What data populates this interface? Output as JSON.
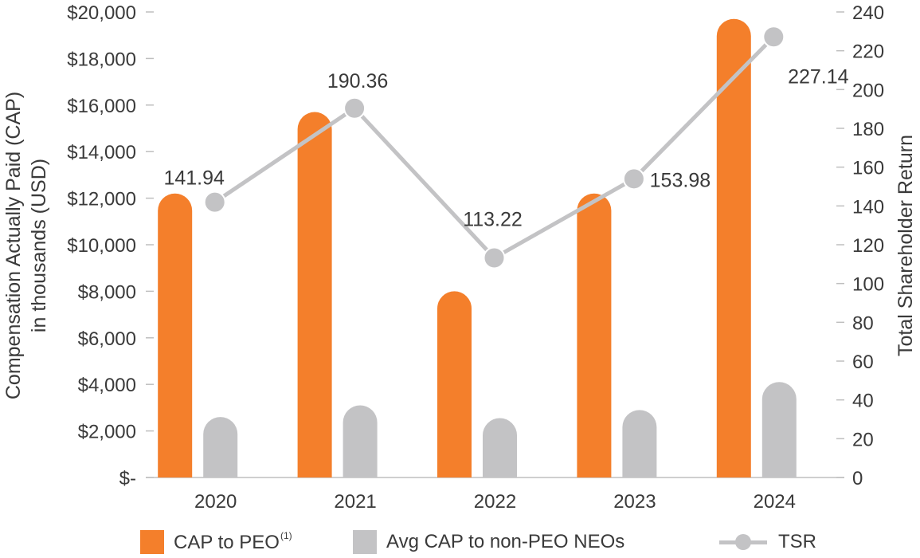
{
  "chart_data": {
    "type": "bar",
    "categories": [
      "2020",
      "2021",
      "2022",
      "2023",
      "2024"
    ],
    "series": [
      {
        "name": "CAP to PEO",
        "name_sup": "(1)",
        "axis": "left",
        "color": "#f47f2b",
        "values": [
          12200,
          15700,
          8000,
          12200,
          19700
        ]
      },
      {
        "name": "Avg CAP to non-PEO NEOs",
        "axis": "left",
        "color": "#c3c3c5",
        "values": [
          2600,
          3100,
          2550,
          2900,
          4100
        ]
      },
      {
        "name": "TSR",
        "axis": "right",
        "type": "line",
        "color": "#c3c3c5",
        "values": [
          141.94,
          190.36,
          113.22,
          153.98,
          227.14
        ],
        "labels": [
          "141.94",
          "190.36",
          "113.22",
          "153.98",
          "227.14"
        ]
      }
    ],
    "ylabel_left": [
      "Compensation Actually Paid (CAP)",
      "in thousands (USD)"
    ],
    "ylabel_right": "Total Shareholder Return",
    "ylim_left": [
      0,
      20000
    ],
    "ylim_right": [
      0,
      240
    ],
    "yticks_left": [
      "$-",
      "$2,000",
      "$4,000",
      "$6,000",
      "$8,000",
      "$10,000",
      "$12,000",
      "$14,000",
      "$16,000",
      "$18,000",
      "$20,000"
    ],
    "yticks_right": [
      "0",
      "20",
      "40",
      "60",
      "80",
      "100",
      "120",
      "140",
      "160",
      "180",
      "200",
      "220",
      "240"
    ],
    "grid": false,
    "legend_position": "bottom"
  }
}
